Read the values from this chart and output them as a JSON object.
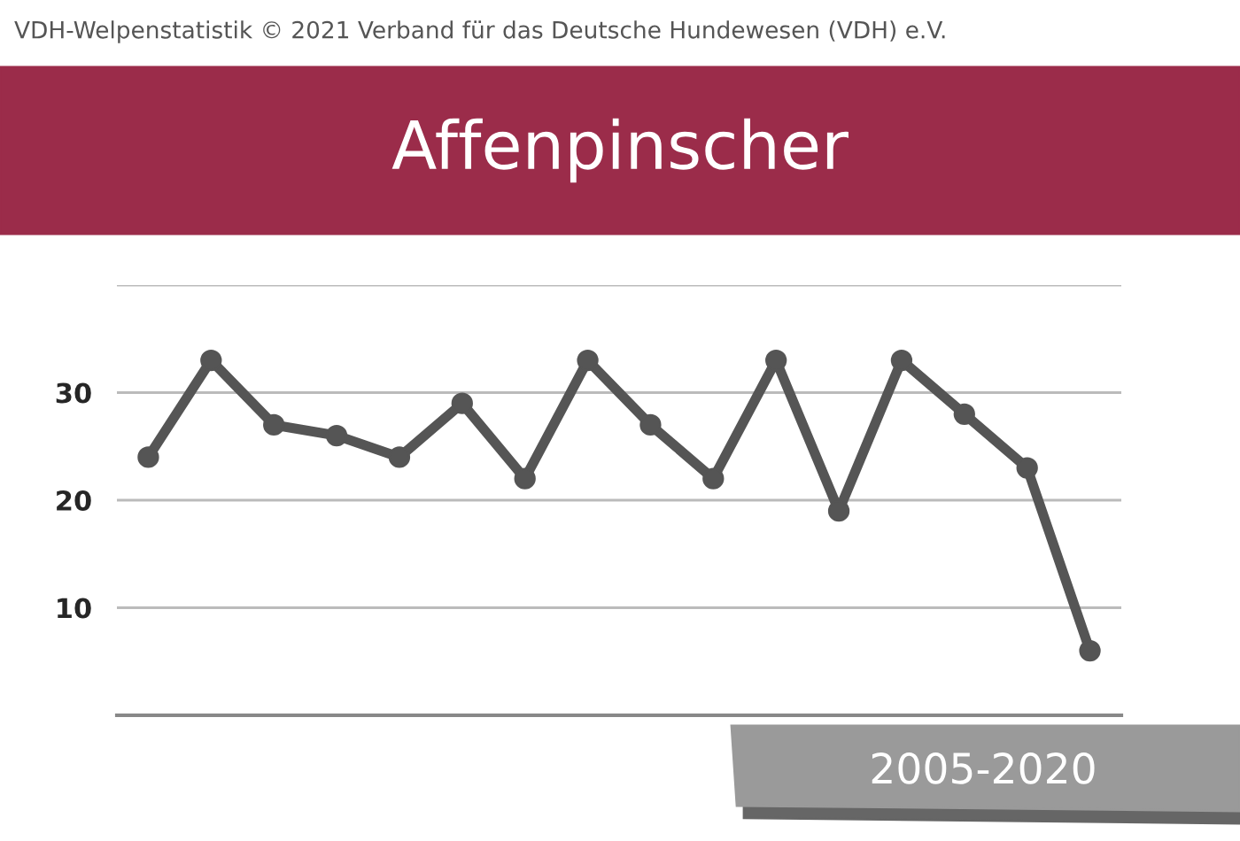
{
  "chart_data": {
    "type": "line",
    "title": "Affenpinscher",
    "categories": [
      null,
      null,
      null,
      null,
      null,
      null,
      null,
      null,
      null,
      null,
      null,
      null,
      null,
      null,
      null,
      null
    ],
    "series": [
      {
        "color": "#555555",
        "values": [
          24,
          33,
          27,
          26,
          24,
          29,
          22,
          33,
          27,
          22,
          33,
          19,
          33,
          28,
          23,
          6
        ]
      }
    ],
    "ylim": [
      0,
      40
    ],
    "yticks": [
      {
        "value": 0,
        "label": null
      },
      10,
      20,
      30,
      {
        "value": 40,
        "label": null
      }
    ],
    "grid": "y",
    "marker": "circle",
    "line_style": "solid",
    "annotations": [
      "VDH-Welpenstatistik © 2021 Verband für das Deutsche Hundewesen (VDH) e.V.",
      "2005-2020"
    ]
  }
}
